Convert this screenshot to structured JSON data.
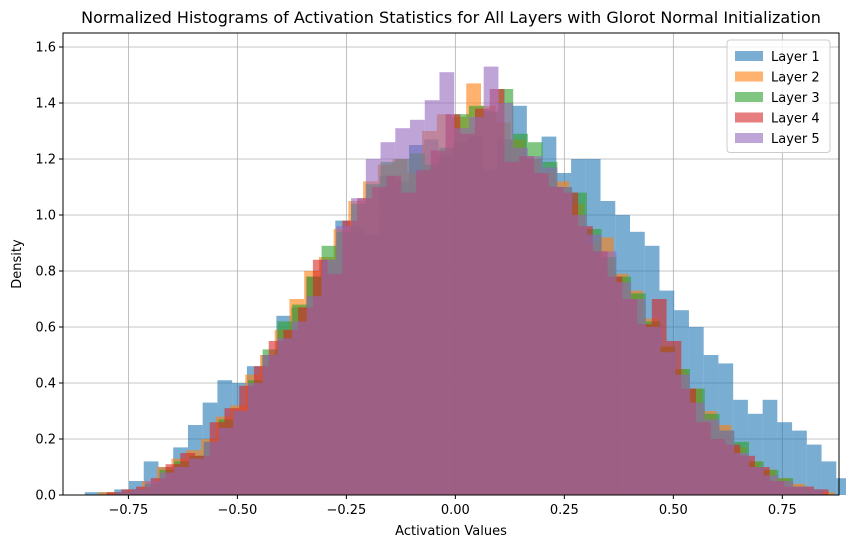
{
  "chart_data": {
    "type": "histogram",
    "title": "Normalized Histograms of Activation Statistics for All Layers with Glorot Normal Initialization",
    "xlabel": "Activation Values",
    "ylabel": "Density",
    "xlim": [
      -0.9,
      0.88
    ],
    "ylim": [
      0,
      1.65
    ],
    "xticks": [
      -0.75,
      -0.5,
      -0.25,
      0.0,
      0.25,
      0.5,
      0.75
    ],
    "xtick_labels": [
      "−0.75",
      "−0.50",
      "−0.25",
      "0.00",
      "0.25",
      "0.50",
      "0.75"
    ],
    "yticks": [
      0.0,
      0.2,
      0.4,
      0.6,
      0.8,
      1.0,
      1.2,
      1.4,
      1.6
    ],
    "ytick_labels": [
      "0.0",
      "0.2",
      "0.4",
      "0.6",
      "0.8",
      "1.0",
      "1.2",
      "1.4",
      "1.6"
    ],
    "grid": true,
    "legend_position": "top-right",
    "series": [
      {
        "name": "Layer 1",
        "color": "#1f77b4",
        "bin_start": -0.85,
        "bin_width": 0.0338,
        "values": [
          0.01,
          0.01,
          0.02,
          0.05,
          0.12,
          0.1,
          0.17,
          0.25,
          0.33,
          0.41,
          0.4,
          0.46,
          0.5,
          0.64,
          0.67,
          0.78,
          0.84,
          0.98,
          0.96,
          0.93,
          1.14,
          1.12,
          1.25,
          1.27,
          1.21,
          1.26,
          1.28,
          1.16,
          1.27,
          1.39,
          1.2,
          1.28,
          1.15,
          1.2,
          1.2,
          1.05,
          1.0,
          0.94,
          0.89,
          0.73,
          0.66,
          0.6,
          0.5,
          0.47,
          0.34,
          0.29,
          0.34,
          0.26,
          0.23,
          0.18,
          0.12,
          0.06,
          0.03,
          0.02,
          0.01,
          0.01
        ]
      },
      {
        "name": "Layer 2",
        "color": "#ff7f0e",
        "bin_start": -0.82,
        "bin_width": 0.0338,
        "values": [
          0.01,
          0.01,
          0.02,
          0.05,
          0.1,
          0.13,
          0.16,
          0.2,
          0.28,
          0.32,
          0.43,
          0.5,
          0.59,
          0.7,
          0.8,
          0.85,
          0.95,
          1.05,
          1.12,
          1.18,
          1.2,
          1.15,
          1.3,
          1.36,
          1.35,
          1.47,
          1.39,
          1.33,
          1.27,
          1.2,
          1.15,
          1.12,
          1.04,
          0.9,
          0.92,
          0.79,
          0.73,
          0.63,
          0.53,
          0.45,
          0.38,
          0.3,
          0.25,
          0.17,
          0.12,
          0.09,
          0.06,
          0.04,
          0.02,
          0.01
        ]
      },
      {
        "name": "Layer 3",
        "color": "#2ca02c",
        "bin_start": -0.78,
        "bin_width": 0.0338,
        "values": [
          0.01,
          0.02,
          0.04,
          0.09,
          0.12,
          0.14,
          0.19,
          0.27,
          0.3,
          0.41,
          0.52,
          0.62,
          0.68,
          0.78,
          0.89,
          0.94,
          1.04,
          1.11,
          1.19,
          1.2,
          1.22,
          1.18,
          1.24,
          1.36,
          1.39,
          1.37,
          1.45,
          1.29,
          1.26,
          1.19,
          1.1,
          1.08,
          0.95,
          0.85,
          0.78,
          0.72,
          0.62,
          0.53,
          0.45,
          0.38,
          0.29,
          0.23,
          0.19,
          0.12,
          0.09,
          0.06,
          0.03,
          0.02
        ]
      },
      {
        "name": "Layer 4",
        "color": "#d62728",
        "bin_start": -0.8,
        "bin_width": 0.0338,
        "values": [
          0.01,
          0.02,
          0.03,
          0.06,
          0.11,
          0.15,
          0.14,
          0.26,
          0.31,
          0.39,
          0.46,
          0.55,
          0.59,
          0.67,
          0.84,
          0.79,
          0.98,
          1.06,
          1.1,
          1.14,
          1.08,
          1.16,
          1.23,
          1.36,
          1.29,
          1.38,
          1.45,
          1.19,
          1.21,
          1.15,
          1.1,
          1.08,
          0.96,
          0.87,
          0.78,
          0.7,
          0.61,
          0.7,
          0.55,
          0.38,
          0.26,
          0.2,
          0.18,
          0.14,
          0.1,
          0.05,
          0.03,
          0.03,
          0.02
        ]
      },
      {
        "name": "Layer 5",
        "color": "#9467bd",
        "bin_start": -0.78,
        "bin_width": 0.0338,
        "values": [
          0.01,
          0.02,
          0.05,
          0.08,
          0.1,
          0.13,
          0.19,
          0.24,
          0.3,
          0.4,
          0.5,
          0.56,
          0.62,
          0.71,
          0.84,
          0.96,
          1.06,
          1.2,
          1.26,
          1.31,
          1.34,
          1.41,
          1.51,
          1.31,
          1.35,
          1.53,
          1.4,
          1.24,
          1.21,
          1.17,
          1.1,
          1.0,
          0.93,
          0.87,
          0.76,
          0.7,
          0.6,
          0.51,
          0.43,
          0.33,
          0.27,
          0.23,
          0.15,
          0.1,
          0.07,
          0.05,
          0.03,
          0.02
        ]
      }
    ]
  }
}
